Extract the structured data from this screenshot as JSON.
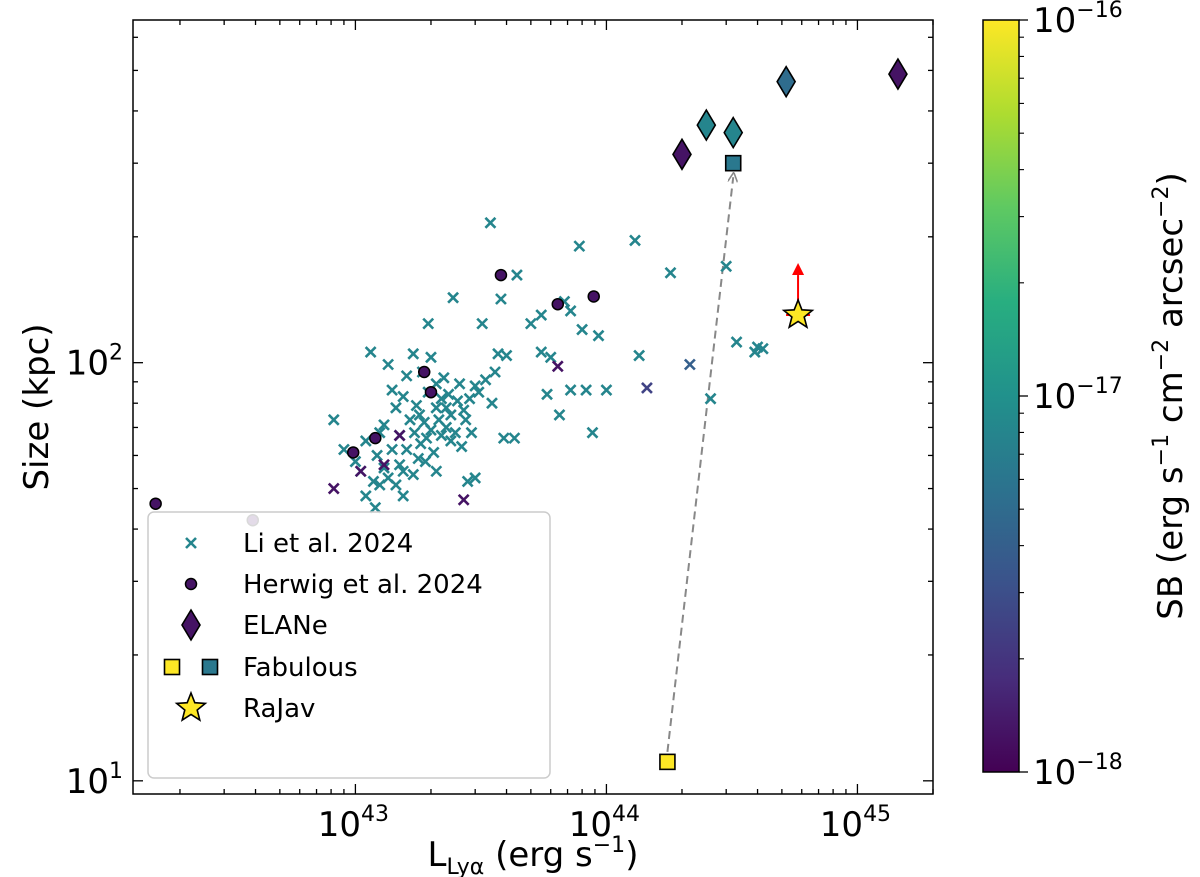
{
  "chart_data": {
    "type": "scatter",
    "xscale": "log",
    "yscale": "log",
    "xlim": [
      1.3e+42,
      2e+45
    ],
    "ylim": [
      9.3,
      660
    ],
    "xlabel": "L",
    "xlabel_sub": "Lyα",
    "xlabel_unit": "(erg s",
    "xlabel_unit_sup": "−1",
    "xlabel_unit_end": ")",
    "ylabel": "Size (kpc)",
    "x_ticks": [
      {
        "value": 1e+43,
        "base": "10",
        "exp": "43"
      },
      {
        "value": 1e+44,
        "base": "10",
        "exp": "44"
      },
      {
        "value": 1e+45,
        "base": "10",
        "exp": "45"
      }
    ],
    "y_ticks": [
      {
        "value": 10,
        "base": "10",
        "exp": "1"
      },
      {
        "value": 100,
        "base": "10",
        "exp": "2"
      }
    ],
    "colorbar": {
      "label": "SB (erg s⁻¹ cm⁻² arcsec⁻²)",
      "range_log": [
        -18,
        -16
      ],
      "ticks": [
        {
          "value": -16,
          "base": "10",
          "exp": "−16"
        },
        {
          "value": -17,
          "base": "10",
          "exp": "−17"
        },
        {
          "value": -18,
          "base": "10",
          "exp": "−18"
        }
      ]
    },
    "legend": {
      "position": "lower-left",
      "entries": [
        {
          "label": "Li et al. 2024",
          "marker": "x"
        },
        {
          "label": "Herwig et al. 2024",
          "marker": "circle"
        },
        {
          "label": "ELANe",
          "marker": "diamond"
        },
        {
          "label": "Fabulous",
          "marker": "square-pair"
        },
        {
          "label": "RaJav",
          "marker": "star"
        }
      ]
    },
    "series": [
      {
        "name": "Li et al. 2024",
        "marker": "x",
        "points": [
          [
            8.2e+42,
            73,
            -17.1
          ],
          [
            9e+42,
            62,
            -17.1
          ],
          [
            1e+43,
            58,
            -17.1
          ],
          [
            1.05e+43,
            55,
            -17.1
          ],
          [
            1.1e+43,
            65,
            -17.1
          ],
          [
            1.1e+43,
            48,
            -17.1
          ],
          [
            1.15e+43,
            106,
            -17.1
          ],
          [
            1.18e+43,
            52,
            -17.1
          ],
          [
            1.2e+43,
            45,
            -17.1
          ],
          [
            1.22e+43,
            60,
            -17.1
          ],
          [
            1.25e+43,
            68,
            -17.1
          ],
          [
            1.25e+43,
            51,
            -17.1
          ],
          [
            1.3e+43,
            56,
            -17.1
          ],
          [
            1.3e+43,
            71,
            -17.1
          ],
          [
            1.35e+43,
            99,
            -17.1
          ],
          [
            1.35e+43,
            53,
            -17.1
          ],
          [
            1.4e+43,
            62,
            -17.1
          ],
          [
            1.4e+43,
            86,
            -17.1
          ],
          [
            1.45e+43,
            51,
            -17.1
          ],
          [
            1.45e+43,
            78,
            -17.1
          ],
          [
            1.5e+43,
            57,
            -17.1
          ],
          [
            1.5e+43,
            67,
            -17.1
          ],
          [
            1.55e+43,
            83,
            -17.1
          ],
          [
            1.55e+43,
            55,
            -17.1
          ],
          [
            1.6e+43,
            93,
            -17.1
          ],
          [
            1.6e+43,
            62,
            -17.1
          ],
          [
            1.65e+43,
            73,
            -17.1
          ],
          [
            1.7e+43,
            54,
            -17.1
          ],
          [
            1.7e+43,
            105,
            -17.1
          ],
          [
            1.72e+43,
            68,
            -17.1
          ],
          [
            1.75e+43,
            79,
            -17.1
          ],
          [
            1.78e+43,
            59,
            -17.1
          ],
          [
            1.8e+43,
            75,
            -17.1
          ],
          [
            1.82e+43,
            64,
            -17.1
          ],
          [
            1.85e+43,
            95,
            -17.1
          ],
          [
            1.88e+43,
            72,
            -17.1
          ],
          [
            1.9e+43,
            58,
            -17.1
          ],
          [
            1.92e+43,
            66,
            -17.1
          ],
          [
            1.95e+43,
            85,
            -17.1
          ],
          [
            1.95e+43,
            124,
            -17.1
          ],
          [
            2e+43,
            103,
            -17.1
          ],
          [
            2e+43,
            69,
            -17.1
          ],
          [
            2.05e+43,
            61,
            -17.1
          ],
          [
            2.1e+43,
            78,
            -17.1
          ],
          [
            2.1e+43,
            89,
            -17.1
          ],
          [
            2.15e+43,
            73,
            -17.1
          ],
          [
            2.2e+43,
            67,
            -17.1
          ],
          [
            2.2e+43,
            82,
            -17.1
          ],
          [
            2.25e+43,
            92,
            -17.1
          ],
          [
            2.3e+43,
            70,
            -17.1
          ],
          [
            2.3e+43,
            78,
            -17.1
          ],
          [
            2.35e+43,
            84,
            -17.1
          ],
          [
            2.4e+43,
            65,
            -17.1
          ],
          [
            2.4e+43,
            75,
            -17.1
          ],
          [
            2.45e+43,
            143,
            -17.1
          ],
          [
            2.5e+43,
            68,
            -17.1
          ],
          [
            2.55e+43,
            81,
            -17.1
          ],
          [
            2.6e+43,
            89,
            -17.1
          ],
          [
            2.65e+43,
            63,
            -17.1
          ],
          [
            2.7e+43,
            77,
            -17.1
          ],
          [
            2.75e+43,
            73,
            -17.1
          ],
          [
            2.8e+43,
            52,
            -17.1
          ],
          [
            2.85e+43,
            82,
            -17.1
          ],
          [
            2.9e+43,
            68,
            -17.1
          ],
          [
            3e+43,
            88,
            -17.1
          ],
          [
            3.1e+43,
            85,
            -17.1
          ],
          [
            3.2e+43,
            124,
            -17.1
          ],
          [
            3.3e+43,
            91,
            -17.1
          ],
          [
            3.45e+43,
            216,
            -17.1
          ],
          [
            3.5e+43,
            80,
            -17.1
          ],
          [
            3.6e+43,
            95,
            -17.1
          ],
          [
            3.7e+43,
            105,
            -17.1
          ],
          [
            3.8e+43,
            142,
            -17.1
          ],
          [
            3.9e+43,
            66,
            -17.1
          ],
          [
            4e+43,
            104,
            -17.1
          ],
          [
            4.3e+43,
            66,
            -17.1
          ],
          [
            4.4e+43,
            162,
            -17.1
          ],
          [
            5e+43,
            124,
            -17.1
          ],
          [
            5.5e+43,
            130,
            -17.1
          ],
          [
            5.8e+43,
            84,
            -17.1
          ],
          [
            6e+43,
            103,
            -17.1
          ],
          [
            6.5e+43,
            75,
            -17.1
          ],
          [
            6.8e+43,
            140,
            -17.1
          ],
          [
            7.2e+43,
            133,
            -17.1
          ],
          [
            7.8e+43,
            190,
            -17.1
          ],
          [
            8e+43,
            120,
            -17.1
          ],
          [
            8.3e+43,
            86,
            -17.1
          ],
          [
            8.8e+43,
            68,
            -17.1
          ],
          [
            9.3e+43,
            116,
            -17.1
          ],
          [
            1e+44,
            86,
            -17.1
          ],
          [
            1.3e+44,
            196,
            -17.1
          ],
          [
            1.35e+44,
            104,
            -17.1
          ],
          [
            1.8e+44,
            164,
            -17.1
          ],
          [
            2.6e+44,
            82,
            -17.1
          ],
          [
            3e+44,
            170,
            -17.1
          ],
          [
            3.3e+44,
            112,
            -17.1
          ],
          [
            3.9e+44,
            106,
            -17.1
          ],
          [
            4e+44,
            109,
            -17.1
          ],
          [
            4.2e+44,
            108,
            -17.1
          ],
          [
            7.2e+43,
            86,
            -17.1
          ],
          [
            5.5e+43,
            106,
            -17.1
          ],
          [
            3e+43,
            53,
            -17.1
          ],
          [
            2.1e+43,
            55,
            -17.1
          ],
          [
            1.55e+43,
            48,
            -17.1
          ],
          [
            8.2e+42,
            50,
            -17.9
          ],
          [
            1.05e+43,
            55,
            -17.9
          ],
          [
            1.3e+43,
            57,
            -17.9
          ],
          [
            1.5e+43,
            67,
            -17.9
          ],
          [
            2.7e+43,
            47,
            -17.9
          ],
          [
            6.4e+43,
            98,
            -17.9
          ],
          [
            1.45e+44,
            87,
            -17.6
          ],
          [
            2.15e+44,
            99,
            -17.4
          ]
        ]
      },
      {
        "name": "Herwig et al. 2024",
        "marker": "circle",
        "points": [
          [
            1.6e+42,
            46,
            -17.9
          ],
          [
            3.9e+42,
            42,
            -17.9
          ],
          [
            9.8e+42,
            61,
            -17.9
          ],
          [
            1.2e+43,
            66,
            -17.9
          ],
          [
            1.88e+43,
            95,
            -17.9
          ],
          [
            2e+43,
            85,
            -17.9
          ],
          [
            3.8e+43,
            162,
            -17.9
          ],
          [
            6.4e+43,
            138,
            -17.9
          ],
          [
            8.9e+43,
            144,
            -17.9
          ]
        ]
      },
      {
        "name": "ELANe",
        "marker": "diamond",
        "points": [
          [
            2e+44,
            315,
            -17.9
          ],
          [
            2.5e+44,
            370,
            -17.1
          ],
          [
            3.2e+44,
            355,
            -17.1
          ],
          [
            5.2e+44,
            470,
            -17.3
          ],
          [
            1.45e+45,
            490,
            -17.9
          ]
        ]
      },
      {
        "name": "Fabulous",
        "marker": "square",
        "points": [
          [
            1.75e+44,
            11.1,
            -16.0
          ],
          [
            3.2e+44,
            300,
            -17.2
          ]
        ]
      },
      {
        "name": "RaJav",
        "marker": "star",
        "points": [
          [
            5.8e+44,
            130,
            -16.0
          ]
        ]
      }
    ]
  }
}
